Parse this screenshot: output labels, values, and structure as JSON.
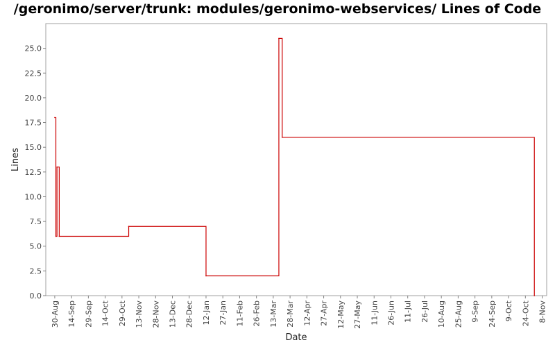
{
  "chart_data": {
    "type": "line",
    "title": "/geronimo/server/trunk: modules/geronimo-webservices/ Lines of Code",
    "xlabel": "Date",
    "ylabel": "Lines",
    "ylim": [
      0,
      27.5
    ],
    "yticks": [
      0.0,
      2.5,
      5.0,
      7.5,
      10.0,
      12.5,
      15.0,
      17.5,
      20.0,
      22.5,
      25.0
    ],
    "ytick_labels": [
      "0.0",
      "2.5",
      "5.0",
      "7.5",
      "10.0",
      "12.5",
      "15.0",
      "17.5",
      "20.0",
      "22.5",
      "25.0"
    ],
    "xlim": [
      "2005-08-22",
      "2006-11-12"
    ],
    "xticks": [
      "2005-08-30",
      "2005-09-14",
      "2005-09-29",
      "2005-10-14",
      "2005-10-29",
      "2005-11-13",
      "2005-11-28",
      "2005-12-13",
      "2005-12-28",
      "2006-01-12",
      "2006-01-27",
      "2006-02-11",
      "2006-02-26",
      "2006-03-13",
      "2006-03-28",
      "2006-04-12",
      "2006-04-27",
      "2006-05-12",
      "2006-05-27",
      "2006-06-11",
      "2006-06-26",
      "2006-07-11",
      "2006-07-26",
      "2006-08-10",
      "2006-08-25",
      "2006-09-09",
      "2006-09-24",
      "2006-10-09",
      "2006-10-24",
      "2006-11-08"
    ],
    "xtick_labels": [
      "30-Aug",
      "14-Sep",
      "29-Sep",
      "14-Oct",
      "29-Oct",
      "13-Nov",
      "28-Nov",
      "13-Dec",
      "28-Dec",
      "12-Jan",
      "27-Jan",
      "11-Feb",
      "26-Feb",
      "13-Mar",
      "28-Mar",
      "12-Apr",
      "27-Apr",
      "12-May",
      "27-May",
      "11-Jun",
      "26-Jun",
      "11-Jul",
      "26-Jul",
      "10-Aug",
      "25-Aug",
      "9-Sep",
      "24-Sep",
      "9-Oct",
      "24-Oct",
      "8-Nov"
    ],
    "step": true,
    "series": [
      {
        "color": "#cc0000",
        "points": [
          {
            "x": "2005-08-30",
            "y": 18
          },
          {
            "x": "2005-08-31",
            "y": 6
          },
          {
            "x": "2005-09-01",
            "y": 13
          },
          {
            "x": "2005-09-03",
            "y": 6
          },
          {
            "x": "2005-11-04",
            "y": 7
          },
          {
            "x": "2006-01-12",
            "y": 2
          },
          {
            "x": "2006-03-18",
            "y": 26
          },
          {
            "x": "2006-03-21",
            "y": 16
          },
          {
            "x": "2006-11-01",
            "y": 0
          }
        ]
      }
    ],
    "grid": false,
    "legend": "none"
  }
}
